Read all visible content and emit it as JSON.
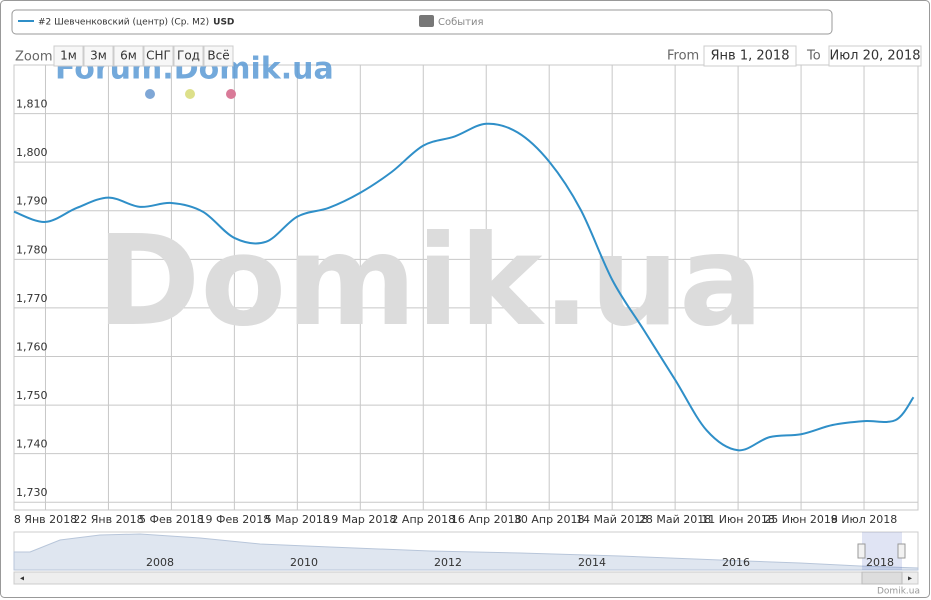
{
  "chart_data": {
    "type": "line",
    "legend": {
      "series_name": "#2 Шевченковский (центр) (Ср. М2)",
      "unit": "USD",
      "events": "События"
    },
    "zoom": {
      "label": "Zoom",
      "buttons": [
        "1м",
        "3м",
        "6м",
        "СНГ",
        "Год",
        "Всё"
      ]
    },
    "range": {
      "from_label": "From",
      "from": "Янв 1, 2018",
      "to_label": "To",
      "to": "Июл 20, 2018"
    },
    "watermark": "Domik.ua",
    "forum_watermark": "Forum.Domik.ua",
    "credits": "Domik.ua",
    "x": [
      "2018-01-01",
      "2018-01-08",
      "2018-01-15",
      "2018-01-22",
      "2018-01-29",
      "2018-02-05",
      "2018-02-12",
      "2018-02-19",
      "2018-02-26",
      "2018-03-05",
      "2018-03-12",
      "2018-03-19",
      "2018-03-26",
      "2018-04-02",
      "2018-04-09",
      "2018-04-16",
      "2018-04-23",
      "2018-04-30",
      "2018-05-07",
      "2018-05-14",
      "2018-05-21",
      "2018-05-28",
      "2018-06-04",
      "2018-06-11",
      "2018-06-18",
      "2018-06-25",
      "2018-07-02",
      "2018-07-09",
      "2018-07-16",
      "2018-07-20"
    ],
    "series": [
      {
        "name": "#2 Шевченковский (центр) (Ср. М2)",
        "color": "#2f8fc8",
        "values": [
          1789.8,
          1787.7,
          1790.6,
          1792.7,
          1790.8,
          1791.6,
          1789.8,
          1784.4,
          1783.6,
          1788.8,
          1790.6,
          1793.7,
          1798,
          1803.4,
          1805.3,
          1807.9,
          1806.1,
          1800.1,
          1790.2,
          1775.8,
          1765.5,
          1755.2,
          1744.8,
          1740.7,
          1743.4,
          1744,
          1745.9,
          1746.7,
          1746.9,
          1751.6
        ]
      }
    ],
    "xlim": [
      "2018-01-01",
      "2018-07-21"
    ],
    "xticks": [
      {
        "value": "2018-01-08",
        "label": "8 Янв 2018"
      },
      {
        "value": "2018-01-22",
        "label": "22 Янв 2018"
      },
      {
        "value": "2018-02-05",
        "label": "5 Фев 2018"
      },
      {
        "value": "2018-02-19",
        "label": "19 Фев 2018"
      },
      {
        "value": "2018-03-05",
        "label": "5 Мар 2018"
      },
      {
        "value": "2018-03-19",
        "label": "19 Мар 2018"
      },
      {
        "value": "2018-04-02",
        "label": "2 Апр 2018"
      },
      {
        "value": "2018-04-16",
        "label": "16 Апр 2018"
      },
      {
        "value": "2018-04-30",
        "label": "30 Апр 2018"
      },
      {
        "value": "2018-05-14",
        "label": "14 Май 2018"
      },
      {
        "value": "2018-05-28",
        "label": "28 Май 2018"
      },
      {
        "value": "2018-06-11",
        "label": "11 Июн 2018"
      },
      {
        "value": "2018-06-25",
        "label": "25 Июн 2018"
      },
      {
        "value": "2018-07-09",
        "label": "9 Июл 2018"
      }
    ],
    "ylim": [
      1728.4,
      1820
    ],
    "yticks": [
      {
        "value": 1730,
        "label": "1,730"
      },
      {
        "value": 1740,
        "label": "1,740"
      },
      {
        "value": 1750,
        "label": "1,750"
      },
      {
        "value": 1760,
        "label": "1,760"
      },
      {
        "value": 1770,
        "label": "1,770"
      },
      {
        "value": 1780,
        "label": "1,780"
      },
      {
        "value": 1790,
        "label": "1,790"
      },
      {
        "value": 1800,
        "label": "1,800"
      },
      {
        "value": 1810,
        "label": "1,810"
      }
    ],
    "grid": true,
    "navigator_labels": [
      "2008",
      "2010",
      "2012",
      "2014",
      "2016",
      "2018"
    ]
  }
}
